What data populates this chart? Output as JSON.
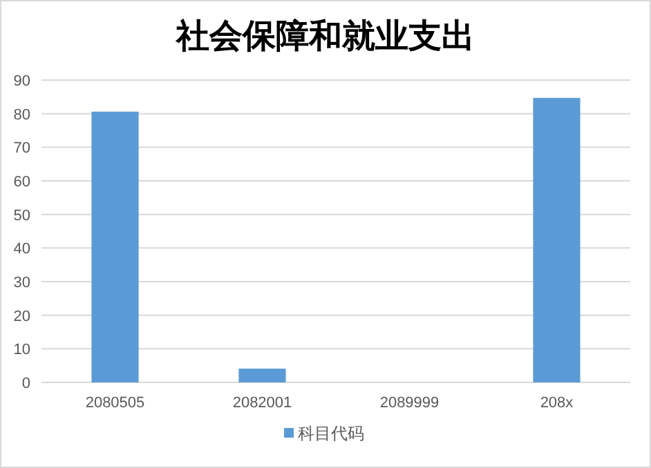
{
  "chart_data": {
    "type": "bar",
    "title": "社会保障和就业支出",
    "categories": [
      "2080505",
      "2082001",
      "2089999",
      "208x"
    ],
    "series": [
      {
        "name": "科目代码",
        "color": "#5b9bd5",
        "values": [
          80.6,
          4.1,
          0,
          84.7
        ]
      }
    ],
    "ylim": [
      0,
      90
    ],
    "yticks": [
      0,
      10,
      20,
      30,
      40,
      50,
      60,
      70,
      80,
      90
    ],
    "grid": "y",
    "legend": "bottom"
  }
}
